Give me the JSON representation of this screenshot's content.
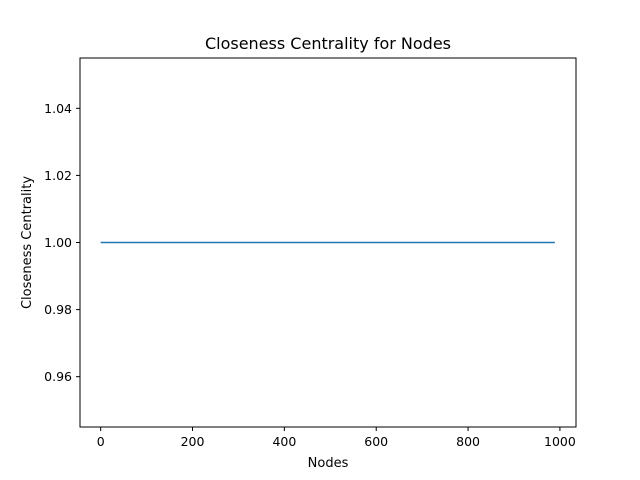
{
  "chart_data": {
    "type": "line",
    "title": "Closeness Centrality for Nodes",
    "xlabel": "Nodes",
    "ylabel": "Closeness Centrality",
    "xlim": [
      -45,
      1035
    ],
    "ylim": [
      0.945,
      1.055
    ],
    "x_ticks": [
      0,
      200,
      400,
      600,
      800,
      1000
    ],
    "x_tick_labels": [
      "0",
      "200",
      "400",
      "600",
      "800",
      "1000"
    ],
    "y_ticks": [
      0.96,
      0.98,
      1.0,
      1.02,
      1.04
    ],
    "y_tick_labels": [
      "0.96",
      "0.98",
      "1.00",
      "1.02",
      "1.04"
    ],
    "grid": false,
    "series": [
      {
        "color": "#1f77b4",
        "x": [
          0,
          989
        ],
        "y": [
          1.0,
          1.0
        ]
      }
    ]
  }
}
